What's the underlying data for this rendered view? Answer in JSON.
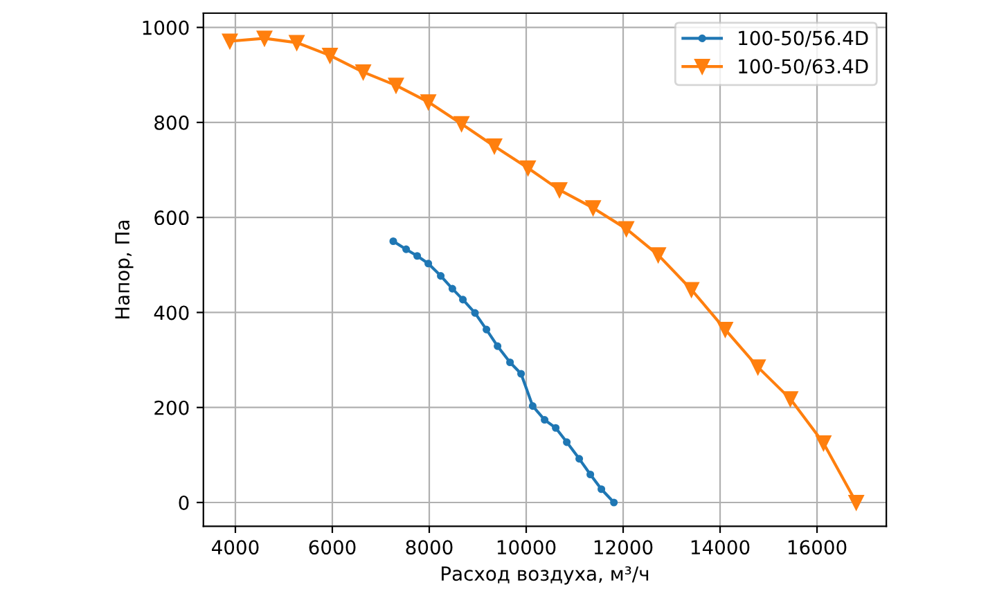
{
  "chart_data": {
    "type": "line",
    "xlabel": "Расход воздуха, м³/ч",
    "ylabel": "Напор, Па",
    "xlim": [
      3340,
      17430
    ],
    "ylim": [
      -50,
      1030
    ],
    "xticks": [
      4000,
      6000,
      8000,
      10000,
      12000,
      14000,
      16000
    ],
    "yticks": [
      0,
      200,
      400,
      600,
      800,
      1000
    ],
    "grid": true,
    "legend": "top right",
    "series": [
      {
        "name": "100-50/56.4D",
        "color": "#1f77b4",
        "marker": "circle",
        "x": [
          7257,
          7523,
          7751,
          7980,
          8237,
          8477,
          8694,
          8943,
          9180,
          9409,
          9666,
          9894,
          10134,
          10380,
          10609,
          10837,
          11094,
          11323,
          11551,
          11809
        ],
        "values": [
          550,
          533,
          519,
          503,
          477,
          450,
          427,
          399,
          364,
          329,
          295,
          271,
          203,
          174,
          157,
          127,
          92,
          59,
          28,
          0
        ]
      },
      {
        "name": "100-50/63.4D",
        "color": "#ff7f0e",
        "marker": "triangle",
        "x": [
          3886,
          4600,
          5266,
          5951,
          6637,
          7314,
          7980,
          8666,
          9343,
          10037,
          10686,
          11380,
          12066,
          12723,
          13409,
          14106,
          14780,
          15449,
          16134,
          16809
        ],
        "values": [
          971,
          977,
          968,
          941,
          906,
          878,
          843,
          797,
          750,
          704,
          658,
          620,
          576,
          521,
          448,
          364,
          285,
          218,
          125,
          0
        ]
      }
    ]
  }
}
